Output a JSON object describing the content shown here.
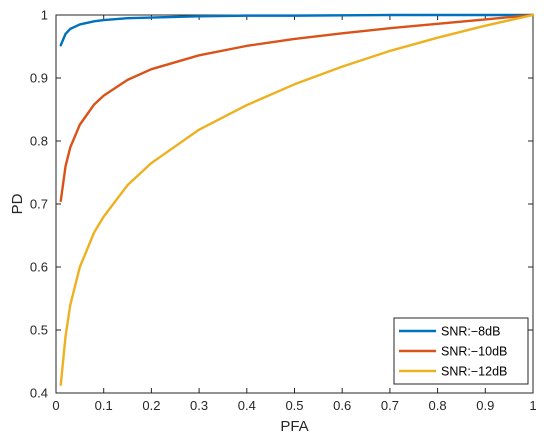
{
  "chart_data": {
    "type": "line",
    "xlabel": "PFA",
    "ylabel": "PD",
    "xlim": [
      0,
      1
    ],
    "ylim": [
      0.4,
      1
    ],
    "xticks": [
      "0",
      "0.1",
      "0.2",
      "0.3",
      "0.4",
      "0.5",
      "0.6",
      "0.7",
      "0.8",
      "0.9",
      "1"
    ],
    "yticks": [
      "0.4",
      "0.5",
      "0.6",
      "0.7",
      "0.8",
      "0.9",
      "1"
    ],
    "grid": false,
    "legend_position": "bottom-right",
    "series": [
      {
        "name": "SNR:−8dB",
        "color": "#0072BD",
        "x": [
          0.01,
          0.02,
          0.03,
          0.05,
          0.08,
          0.1,
          0.15,
          0.2,
          0.3,
          0.4,
          0.5,
          0.7,
          1.0
        ],
        "y": [
          0.952,
          0.97,
          0.978,
          0.985,
          0.99,
          0.992,
          0.995,
          0.996,
          0.998,
          0.999,
          0.999,
          1.0,
          1.0
        ]
      },
      {
        "name": "SNR:−10dB",
        "color": "#D95319",
        "x": [
          0.01,
          0.02,
          0.03,
          0.05,
          0.08,
          0.1,
          0.15,
          0.2,
          0.3,
          0.4,
          0.5,
          0.6,
          0.7,
          0.8,
          0.9,
          1.0
        ],
        "y": [
          0.705,
          0.76,
          0.79,
          0.826,
          0.858,
          0.872,
          0.897,
          0.914,
          0.936,
          0.951,
          0.962,
          0.971,
          0.979,
          0.986,
          0.993,
          1.0
        ]
      },
      {
        "name": "SNR:−12dB",
        "color": "#EDB120",
        "x": [
          0.01,
          0.02,
          0.03,
          0.05,
          0.08,
          0.1,
          0.15,
          0.2,
          0.3,
          0.4,
          0.5,
          0.6,
          0.7,
          0.8,
          0.9,
          1.0
        ],
        "y": [
          0.413,
          0.49,
          0.54,
          0.6,
          0.655,
          0.68,
          0.73,
          0.765,
          0.818,
          0.857,
          0.89,
          0.918,
          0.943,
          0.964,
          0.983,
          1.0
        ]
      }
    ]
  }
}
